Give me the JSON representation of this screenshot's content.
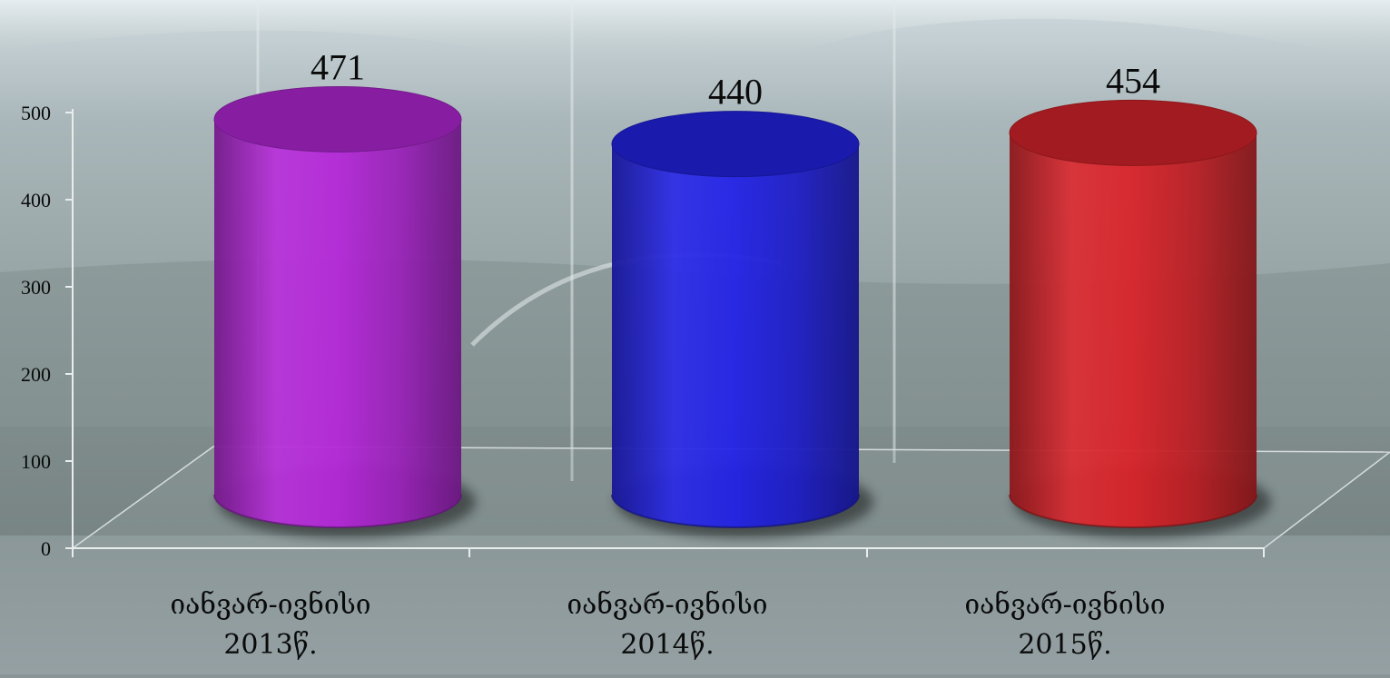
{
  "chart_data": {
    "type": "bar",
    "title": "",
    "xlabel": "",
    "ylabel": "",
    "categories": [
      [
        "იანვარ-ივნისი",
        "2013წ."
      ],
      [
        "იანვარ-ივნისი",
        "2014წ."
      ],
      [
        "იანვარ-ივნისი",
        "2015წ."
      ]
    ],
    "values": [
      471,
      440,
      454
    ],
    "data_labels": [
      "471",
      "440",
      "454"
    ],
    "bar_colors": [
      "#b428d8",
      "#2323e6",
      "#d8242a"
    ],
    "bar_shape": "cylinder-3d",
    "ylim": [
      0,
      500
    ],
    "yticks": [
      0,
      100,
      200,
      300,
      400,
      500
    ],
    "ytick_labels": [
      "0",
      "100",
      "200",
      "300",
      "400",
      "500"
    ],
    "grid": false,
    "legend": "none"
  }
}
